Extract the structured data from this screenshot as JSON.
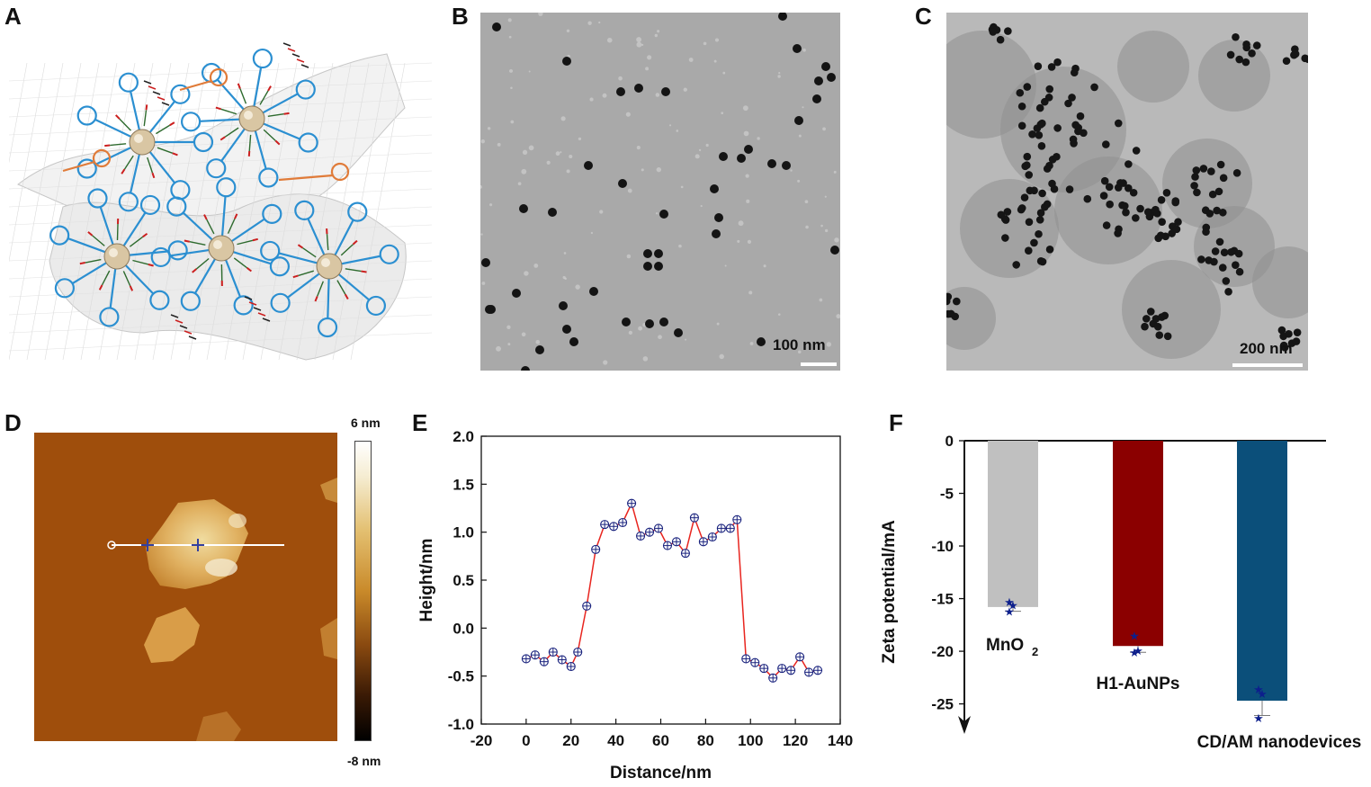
{
  "panels": {
    "a": {
      "letter": "A"
    },
    "b": {
      "letter": "B",
      "scale_label": "100 nm"
    },
    "c": {
      "letter": "C",
      "scale_label": "200 nm"
    },
    "d": {
      "letter": "D",
      "colorbar_max": "6 nm",
      "colorbar_min": "-8 nm"
    },
    "e": {
      "letter": "E"
    },
    "f": {
      "letter": "F"
    }
  },
  "colors": {
    "dna_strand": "#2b8fd1",
    "linker": "#e07b39",
    "profile_line": "#e8251f",
    "marker": "#1a237e",
    "bar_mno2": "#c0c0c0",
    "bar_h1": "#8b0000",
    "bar_cdam": "#0b4f7a",
    "star": "#0d1f8c"
  },
  "chart_data": [
    {
      "type": "line",
      "xlabel": "Distance/nm",
      "ylabel": "Height/nm",
      "xlim": [
        -20,
        140
      ],
      "ylim": [
        -1.0,
        2.0
      ],
      "x_ticks": [
        "-20",
        "0",
        "20",
        "40",
        "60",
        "80",
        "100",
        "120",
        "140"
      ],
      "y_ticks": [
        "-1.0",
        "-0.5",
        "0.0",
        "0.5",
        "1.0",
        "1.5",
        "2.0"
      ],
      "x": [
        0,
        4,
        8,
        12,
        16,
        20,
        23,
        27,
        31,
        35,
        39,
        43,
        47,
        51,
        55,
        59,
        63,
        67,
        71,
        75,
        79,
        83,
        87,
        91,
        94,
        98,
        102,
        106,
        110,
        114,
        118,
        122,
        126,
        130
      ],
      "y": [
        -0.32,
        -0.28,
        -0.35,
        -0.25,
        -0.33,
        -0.4,
        -0.25,
        0.23,
        0.82,
        1.08,
        1.06,
        1.1,
        1.3,
        0.96,
        1.0,
        1.04,
        0.86,
        0.9,
        0.78,
        1.15,
        0.9,
        0.95,
        1.04,
        1.04,
        1.13,
        -0.32,
        -0.36,
        -0.42,
        -0.52,
        -0.42,
        -0.44,
        -0.3,
        -0.46,
        -0.44
      ]
    },
    {
      "type": "bar",
      "ylabel": "Zeta potential/mA",
      "ylim": [
        -27,
        0
      ],
      "y_ticks": [
        "0",
        "-5",
        "-10",
        "-15",
        "-20",
        "-25"
      ],
      "categories": [
        "MnO2",
        "H1-AuNPs",
        "CD/AM nanodevices"
      ],
      "category_labels": {
        "mno2_base": "MnO",
        "mno2_sub": "2",
        "h1": "H1-AuNPs",
        "cdam": "CD/AM nanodevices"
      },
      "values": [
        -15.8,
        -19.5,
        -24.7
      ],
      "errors": [
        0.4,
        0.6,
        1.4
      ],
      "points": [
        [
          -15.3,
          -15.6,
          -16.2
        ],
        [
          -18.5,
          -19.9,
          -20.1
        ],
        [
          -23.6,
          -24.0,
          -26.3
        ]
      ]
    }
  ]
}
